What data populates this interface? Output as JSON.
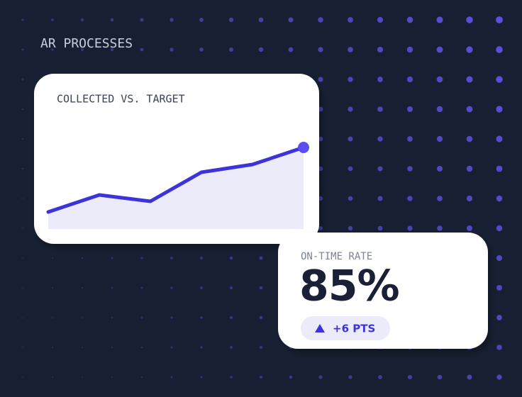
{
  "title": "AR PROCESSES",
  "chart_data": {
    "type": "line",
    "title": "COLLECTED VS. TARGET",
    "values": [
      24,
      48,
      39,
      80,
      91,
      115
    ],
    "color": "#3d33d9",
    "area_color": "#ecebfa"
  },
  "stat": {
    "label": "ON-TIME RATE",
    "value": "85%",
    "change": "+6 PTS"
  }
}
